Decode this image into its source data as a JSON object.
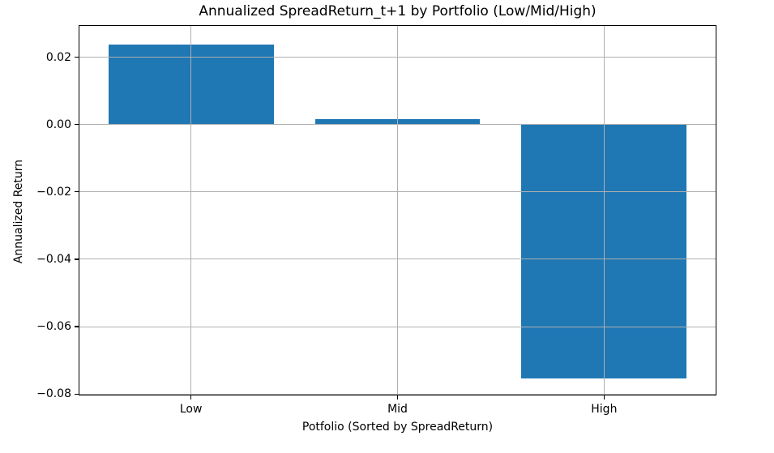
{
  "chart_data": {
    "type": "bar",
    "title": "Annualized SpreadReturn_t+1 by Portfolio (Low/Mid/High)",
    "xlabel": "Potfolio (Sorted by SpreadReturn)",
    "ylabel": "Annualized Return",
    "categories": [
      "Low",
      "Mid",
      "High"
    ],
    "x_positions": [
      0,
      1,
      2
    ],
    "values": [
      0.0238,
      0.0016,
      -0.0753
    ],
    "bar_color": "#1f77b4",
    "bar_width": 0.8,
    "xlim": [
      -0.54,
      2.54
    ],
    "ylim": [
      -0.0802,
      0.0293
    ],
    "yticks": [
      0.02,
      0.0,
      -0.02,
      -0.04,
      -0.06,
      -0.08
    ],
    "ytick_labels": [
      "0.02",
      "0.00",
      "−0.02",
      "−0.04",
      "−0.06",
      "−0.08"
    ],
    "grid": true,
    "grid_color": "#b0b0b0",
    "grid_above_bars": true,
    "spine_color": "#000000",
    "background_color": "#ffffff"
  }
}
